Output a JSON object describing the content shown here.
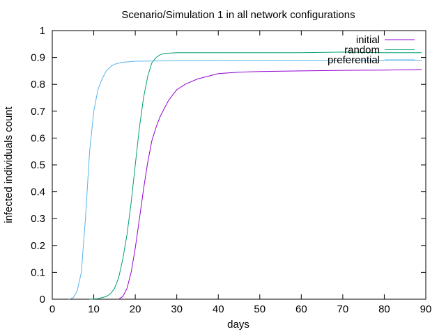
{
  "chart_data": {
    "type": "line",
    "title": "Scenario/Simulation 1 in all network configurations",
    "xlabel": "days",
    "ylabel": "infected individuals count",
    "xlim": [
      0,
      90
    ],
    "ylim": [
      0,
      1
    ],
    "xticks": [
      0,
      10,
      20,
      30,
      40,
      50,
      60,
      70,
      80,
      90
    ],
    "yticks": [
      0,
      0.1,
      0.2,
      0.3,
      0.4,
      0.5,
      0.6,
      0.7,
      0.8,
      0.9,
      1
    ],
    "grid": false,
    "legend_position": "top-right",
    "series": [
      {
        "name": "initial",
        "color": "#9400d3",
        "points": [
          [
            16,
            0
          ],
          [
            17,
            0.01
          ],
          [
            18,
            0.04
          ],
          [
            19,
            0.1
          ],
          [
            20,
            0.19
          ],
          [
            21,
            0.3
          ],
          [
            22,
            0.41
          ],
          [
            23,
            0.51
          ],
          [
            24,
            0.59
          ],
          [
            25,
            0.64
          ],
          [
            26,
            0.68
          ],
          [
            27,
            0.71
          ],
          [
            28,
            0.74
          ],
          [
            29,
            0.76
          ],
          [
            30,
            0.78
          ],
          [
            32,
            0.8
          ],
          [
            35,
            0.82
          ],
          [
            40,
            0.84
          ],
          [
            45,
            0.845
          ],
          [
            50,
            0.848
          ],
          [
            60,
            0.85
          ],
          [
            70,
            0.852
          ],
          [
            80,
            0.853
          ],
          [
            89,
            0.855
          ]
        ]
      },
      {
        "name": "random",
        "color": "#009e73",
        "points": [
          [
            9,
            0
          ],
          [
            11,
            0.002
          ],
          [
            13,
            0.01
          ],
          [
            14,
            0.02
          ],
          [
            15,
            0.04
          ],
          [
            16,
            0.08
          ],
          [
            17,
            0.15
          ],
          [
            18,
            0.24
          ],
          [
            19,
            0.36
          ],
          [
            20,
            0.5
          ],
          [
            21,
            0.64
          ],
          [
            22,
            0.75
          ],
          [
            23,
            0.83
          ],
          [
            24,
            0.88
          ],
          [
            25,
            0.9
          ],
          [
            26,
            0.91
          ],
          [
            27,
            0.915
          ],
          [
            30,
            0.918
          ],
          [
            40,
            0.918
          ],
          [
            60,
            0.918
          ],
          [
            70,
            0.92
          ],
          [
            80,
            0.918
          ],
          [
            89,
            0.918
          ]
        ]
      },
      {
        "name": "preferential",
        "color": "#56b4e9",
        "points": [
          [
            4,
            0
          ],
          [
            5,
            0.005
          ],
          [
            6,
            0.03
          ],
          [
            7,
            0.1
          ],
          [
            8,
            0.3
          ],
          [
            9,
            0.55
          ],
          [
            10,
            0.7
          ],
          [
            11,
            0.78
          ],
          [
            12,
            0.82
          ],
          [
            13,
            0.85
          ],
          [
            14,
            0.865
          ],
          [
            15,
            0.875
          ],
          [
            17,
            0.882
          ],
          [
            20,
            0.886
          ],
          [
            30,
            0.888
          ],
          [
            50,
            0.889
          ],
          [
            70,
            0.89
          ],
          [
            89,
            0.89
          ]
        ]
      }
    ]
  }
}
